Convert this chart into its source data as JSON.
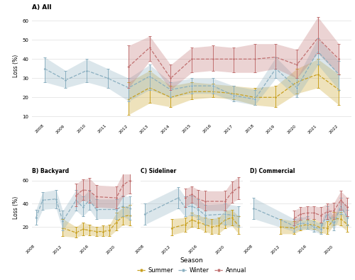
{
  "years_all": [
    2008,
    2009,
    2010,
    2011,
    2012,
    2013,
    2014,
    2015,
    2016,
    2017,
    2018,
    2019,
    2020,
    2021,
    2022
  ],
  "all_summer_mean": [
    null,
    null,
    null,
    null,
    19,
    25,
    20,
    23,
    23,
    22,
    20,
    20,
    28,
    32,
    24
  ],
  "all_summer_lo": [
    null,
    null,
    null,
    null,
    11,
    17,
    15,
    19,
    20,
    19,
    16,
    15,
    22,
    25,
    16
  ],
  "all_summer_hi": [
    null,
    null,
    null,
    null,
    28,
    34,
    26,
    28,
    27,
    26,
    25,
    26,
    35,
    40,
    32
  ],
  "all_winter_mean": [
    35,
    29,
    34,
    30,
    25,
    31,
    24,
    26,
    26,
    21,
    19,
    35,
    25,
    44,
    32
  ],
  "all_winter_lo": [
    28,
    25,
    28,
    25,
    18,
    24,
    20,
    22,
    22,
    18,
    16,
    30,
    20,
    37,
    24
  ],
  "all_winter_hi": [
    41,
    34,
    40,
    35,
    30,
    37,
    28,
    30,
    30,
    26,
    24,
    41,
    30,
    51,
    39
  ],
  "all_annual_mean": [
    null,
    null,
    null,
    null,
    36,
    46,
    30,
    40,
    40,
    40,
    40,
    41,
    37,
    51,
    40
  ],
  "all_annual_lo": [
    null,
    null,
    null,
    null,
    25,
    39,
    24,
    33,
    34,
    33,
    33,
    35,
    30,
    43,
    32
  ],
  "all_annual_hi": [
    null,
    null,
    null,
    null,
    47,
    52,
    37,
    46,
    47,
    46,
    48,
    48,
    45,
    62,
    48
  ],
  "years_sub": [
    2008,
    2009,
    2010,
    2011,
    2012,
    2013,
    2014,
    2015,
    2016,
    2017,
    2018,
    2019,
    2020,
    2021,
    2022
  ],
  "backyard_summer_mean": [
    null,
    null,
    null,
    null,
    19,
    null,
    15,
    18,
    17,
    16,
    16,
    17,
    24,
    29,
    30
  ],
  "backyard_summer_lo": [
    null,
    null,
    null,
    null,
    12,
    null,
    11,
    13,
    13,
    12,
    12,
    12,
    17,
    22,
    21
  ],
  "backyard_summer_hi": [
    null,
    null,
    null,
    null,
    27,
    null,
    20,
    24,
    22,
    20,
    21,
    22,
    32,
    37,
    39
  ],
  "backyard_winter_mean": [
    28,
    43,
    null,
    44,
    25,
    null,
    43,
    37,
    43,
    35,
    null,
    null,
    35,
    38,
    36
  ],
  "backyard_winter_lo": [
    22,
    35,
    null,
    36,
    17,
    null,
    34,
    29,
    35,
    27,
    null,
    null,
    27,
    29,
    26
  ],
  "backyard_winter_hi": [
    35,
    50,
    null,
    52,
    34,
    null,
    52,
    46,
    52,
    44,
    null,
    null,
    44,
    47,
    46
  ],
  "backyard_annual_mean": [
    null,
    null,
    null,
    null,
    null,
    null,
    47,
    52,
    51,
    46,
    null,
    null,
    45,
    56,
    60
  ],
  "backyard_annual_lo": [
    null,
    null,
    null,
    null,
    null,
    null,
    38,
    43,
    41,
    37,
    null,
    null,
    36,
    46,
    49
  ],
  "backyard_annual_hi": [
    null,
    null,
    null,
    null,
    null,
    null,
    57,
    61,
    62,
    56,
    null,
    null,
    55,
    66,
    70
  ],
  "sideliner_summer_mean": [
    null,
    null,
    null,
    null,
    19,
    null,
    22,
    26,
    24,
    22,
    20,
    21,
    26,
    28,
    21
  ],
  "sideliner_summer_lo": [
    null,
    null,
    null,
    null,
    13,
    null,
    16,
    20,
    19,
    16,
    14,
    14,
    19,
    21,
    14
  ],
  "sideliner_summer_hi": [
    null,
    null,
    null,
    null,
    27,
    null,
    28,
    32,
    30,
    28,
    27,
    28,
    34,
    35,
    29
  ],
  "sideliner_winter_mean": [
    31,
    null,
    null,
    null,
    null,
    45,
    37,
    38,
    35,
    30,
    null,
    null,
    31,
    null,
    29
  ],
  "sideliner_winter_lo": [
    22,
    null,
    null,
    null,
    null,
    36,
    29,
    30,
    27,
    22,
    null,
    null,
    22,
    null,
    20
  ],
  "sideliner_winter_hi": [
    40,
    null,
    null,
    null,
    null,
    54,
    46,
    47,
    44,
    39,
    null,
    null,
    40,
    null,
    38
  ],
  "sideliner_annual_mean": [
    null,
    null,
    null,
    null,
    null,
    null,
    45,
    48,
    44,
    42,
    null,
    null,
    42,
    50,
    54
  ],
  "sideliner_annual_lo": [
    null,
    null,
    null,
    null,
    null,
    null,
    37,
    41,
    37,
    34,
    null,
    null,
    34,
    41,
    44
  ],
  "sideliner_annual_hi": [
    null,
    null,
    null,
    null,
    null,
    null,
    53,
    55,
    52,
    51,
    null,
    null,
    51,
    59,
    63
  ],
  "commercial_summer_mean": [
    null,
    null,
    null,
    null,
    20,
    null,
    19,
    21,
    22,
    22,
    19,
    19,
    27,
    27,
    22
  ],
  "commercial_summer_lo": [
    null,
    null,
    null,
    null,
    14,
    null,
    14,
    17,
    18,
    18,
    15,
    14,
    22,
    21,
    16
  ],
  "commercial_summer_hi": [
    null,
    null,
    null,
    null,
    27,
    null,
    25,
    26,
    26,
    27,
    24,
    25,
    33,
    33,
    29
  ],
  "commercial_winter_mean": [
    36,
    null,
    null,
    null,
    null,
    null,
    21,
    23,
    23,
    20,
    18,
    32,
    22,
    38,
    28
  ],
  "commercial_winter_lo": [
    27,
    null,
    null,
    null,
    null,
    null,
    16,
    18,
    18,
    16,
    14,
    26,
    17,
    31,
    21
  ],
  "commercial_winter_hi": [
    45,
    null,
    null,
    null,
    null,
    null,
    27,
    28,
    29,
    25,
    23,
    38,
    28,
    45,
    35
  ],
  "commercial_annual_mean": [
    null,
    null,
    null,
    null,
    null,
    null,
    27,
    31,
    32,
    32,
    30,
    33,
    34,
    43,
    37
  ],
  "commercial_annual_lo": [
    null,
    null,
    null,
    null,
    null,
    null,
    21,
    26,
    27,
    27,
    24,
    27,
    27,
    35,
    29
  ],
  "commercial_annual_hi": [
    null,
    null,
    null,
    null,
    null,
    null,
    34,
    37,
    38,
    38,
    37,
    40,
    41,
    51,
    45
  ],
  "color_summer": "#C8A020",
  "color_winter": "#8AAFC0",
  "color_annual": "#C07070",
  "alpha_band": 0.3,
  "bg_color": "#FFFFFF",
  "grid_color": "#E8E8E8"
}
